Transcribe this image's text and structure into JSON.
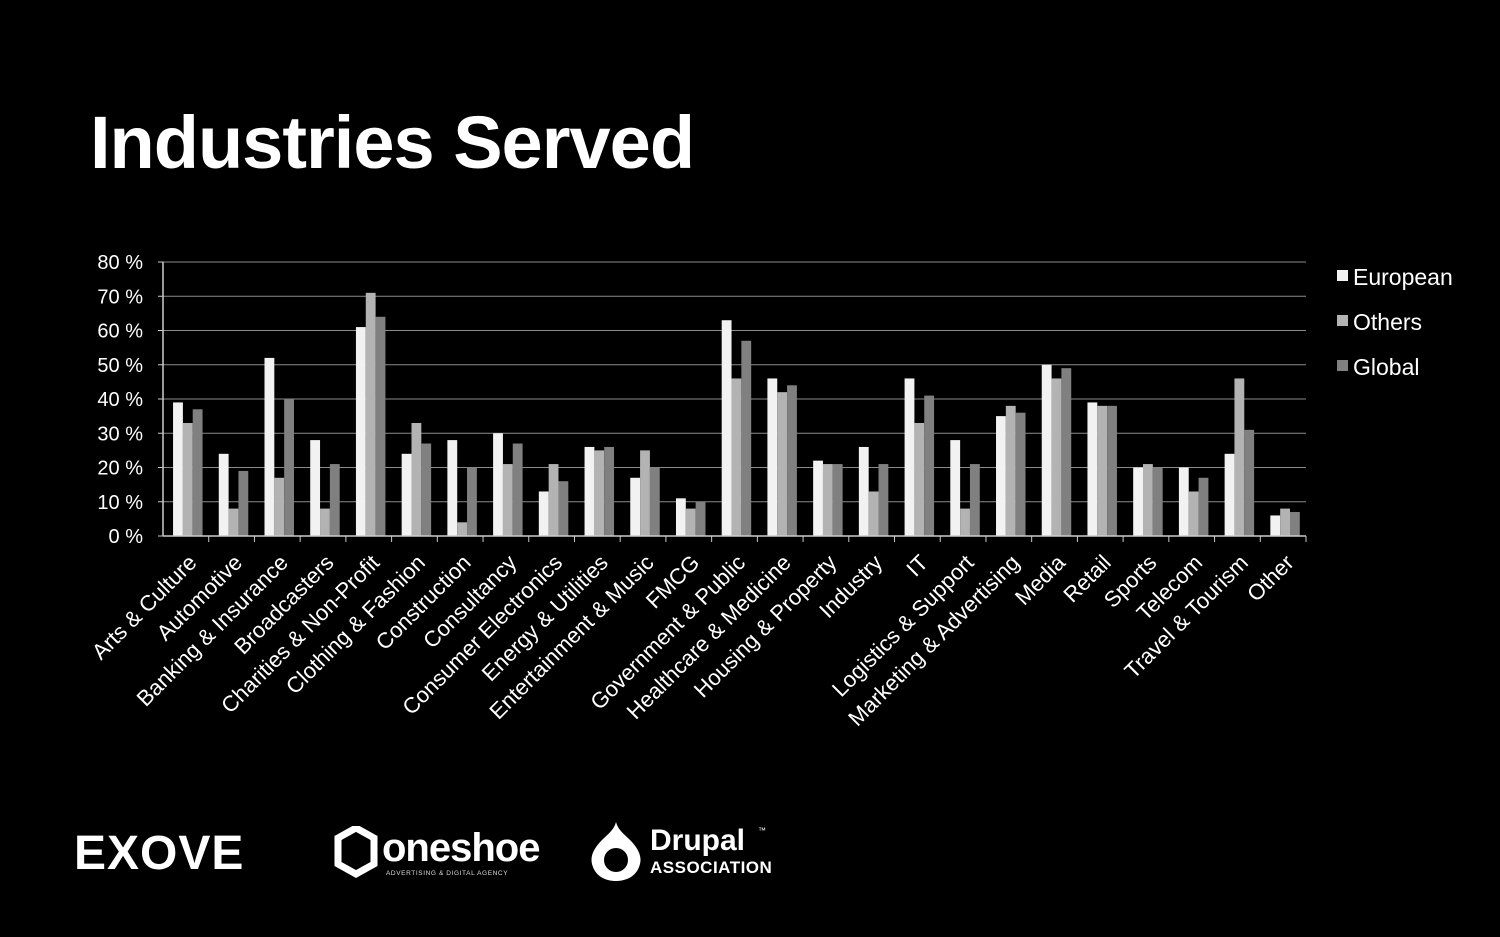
{
  "slide": {
    "title": "Industries Served"
  },
  "logos": {
    "exove": "EXOVE",
    "oneshoe": {
      "name": "oneshoe",
      "tagline": "ADVERTISING & DIGITAL AGENCY"
    },
    "drupal": {
      "name": "Drupal",
      "tm": "™",
      "sub": "ASSOCIATION"
    }
  },
  "chart_data": {
    "type": "bar",
    "title": "",
    "xlabel": "",
    "ylabel": "",
    "ylim": [
      0,
      80
    ],
    "yticks": [
      "0 %",
      "10 %",
      "20 %",
      "30 %",
      "40 %",
      "50 %",
      "60 %",
      "70 %",
      "80 %"
    ],
    "grid": true,
    "legend_position": "right",
    "categories": [
      "Arts & Culture",
      "Automotive",
      "Banking & Insurance",
      "Broadcasters",
      "Charities & Non-Profit",
      "Clothing & Fashion",
      "Construction",
      "Consultancy",
      "Consumer Electronics",
      "Energy & Utilities",
      "Entertainment & Music",
      "FMCG",
      "Government & Public",
      "Healthcare & Medicine",
      "Housing & Property",
      "Industry",
      "IT",
      "Logistics & Support",
      "Marketing & Advertising",
      "Media",
      "Retail",
      "Sports",
      "Telecom",
      "Travel & Tourism",
      "Other"
    ],
    "series": [
      {
        "name": "European",
        "color": "#f2f2f2",
        "values": [
          39,
          24,
          52,
          28,
          61,
          24,
          28,
          30,
          13,
          26,
          17,
          11,
          63,
          46,
          22,
          26,
          46,
          28,
          35,
          50,
          39,
          20,
          20,
          24,
          6
        ]
      },
      {
        "name": "Others",
        "color": "#b3b3b3",
        "values": [
          33,
          8,
          17,
          8,
          71,
          33,
          4,
          21,
          21,
          25,
          25,
          8,
          46,
          42,
          21,
          13,
          33,
          8,
          38,
          46,
          38,
          21,
          13,
          46,
          8
        ]
      },
      {
        "name": "Global",
        "color": "#808080",
        "values": [
          37,
          19,
          40,
          21,
          64,
          27,
          20,
          27,
          16,
          26,
          20,
          10,
          57,
          44,
          21,
          21,
          41,
          21,
          36,
          49,
          38,
          20,
          17,
          31,
          7
        ]
      }
    ]
  }
}
